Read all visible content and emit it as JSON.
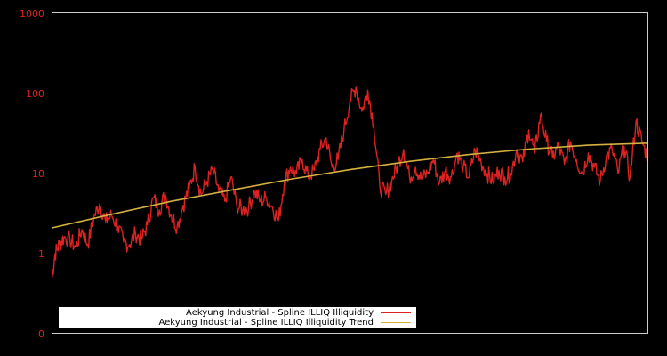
{
  "chart_data": {
    "type": "line",
    "title": "",
    "xlabel": "",
    "ylabel": "",
    "yscale": "log",
    "ylim": [
      0.1,
      1000
    ],
    "yticks": [
      {
        "label": "1000",
        "value": 1000
      },
      {
        "label": "100",
        "value": 100
      },
      {
        "label": "10",
        "value": 10
      },
      {
        "label": "1",
        "value": 1
      },
      {
        "label": "0",
        "value": 0.1
      }
    ],
    "xticks": [],
    "grid": false,
    "legend_position": "lower-left",
    "series": [
      {
        "name": "Aekyung Industrial - Spline ILLIQ Illiquidity",
        "color": "#dd2222",
        "x_frac": [
          0.0,
          0.005,
          0.012,
          0.02,
          0.03,
          0.04,
          0.05,
          0.06,
          0.07,
          0.08,
          0.09,
          0.1,
          0.11,
          0.12,
          0.13,
          0.14,
          0.15,
          0.16,
          0.17,
          0.18,
          0.19,
          0.2,
          0.21,
          0.22,
          0.23,
          0.24,
          0.25,
          0.26,
          0.27,
          0.28,
          0.29,
          0.3,
          0.31,
          0.32,
          0.33,
          0.34,
          0.35,
          0.36,
          0.37,
          0.38,
          0.39,
          0.4,
          0.41,
          0.42,
          0.43,
          0.44,
          0.45,
          0.46,
          0.47,
          0.48,
          0.49,
          0.5,
          0.51,
          0.52,
          0.53,
          0.54,
          0.55,
          0.56,
          0.57,
          0.58,
          0.59,
          0.6,
          0.61,
          0.62,
          0.63,
          0.64,
          0.65,
          0.66,
          0.67,
          0.68,
          0.69,
          0.7,
          0.71,
          0.72,
          0.73,
          0.74,
          0.75,
          0.76,
          0.77,
          0.78,
          0.79,
          0.8,
          0.81,
          0.82,
          0.83,
          0.84,
          0.85,
          0.86,
          0.87,
          0.88,
          0.89,
          0.9,
          0.91,
          0.92,
          0.93,
          0.94,
          0.95,
          0.96,
          0.97,
          0.98,
          0.99,
          1.0
        ],
        "values": [
          0.5,
          1.0,
          1.3,
          1.6,
          1.5,
          1.2,
          2.0,
          1.3,
          2.8,
          4.2,
          2.5,
          3.0,
          2.2,
          1.4,
          1.3,
          1.8,
          1.5,
          2.3,
          5.0,
          3.5,
          5.5,
          3.0,
          2.2,
          4.0,
          6.5,
          12.0,
          5.5,
          8.0,
          11.0,
          6.0,
          4.5,
          9.0,
          4.0,
          3.5,
          3.8,
          6.0,
          4.5,
          5.0,
          3.8,
          2.6,
          8.0,
          12.0,
          10.0,
          15.0,
          9.0,
          11.0,
          20.0,
          28.0,
          12.0,
          15.0,
          35.0,
          80.0,
          120.0,
          60.0,
          110.0,
          40.0,
          7.0,
          5.5,
          8.0,
          13.0,
          20.0,
          9.0,
          12.0,
          8.5,
          10.0,
          15.0,
          7.5,
          11.0,
          9.0,
          18.0,
          12.0,
          9.0,
          20.0,
          14.0,
          10.0,
          8.0,
          11.0,
          9.0,
          10.0,
          20.0,
          14.0,
          35.0,
          18.0,
          55.0,
          25.0,
          16.0,
          22.0,
          13.0,
          25.0,
          15.0,
          10.0,
          18.0,
          12.0,
          8.0,
          16.0,
          20.0,
          10.0,
          22.0,
          9.0,
          45.0,
          25.0,
          16.0
        ]
      },
      {
        "name": "Aekyung Industrial - Spline ILLIQ Illiquidity Trend",
        "color": "#d4b040",
        "x_frac": [
          0.0,
          0.1,
          0.2,
          0.3,
          0.4,
          0.5,
          0.6,
          0.7,
          0.8,
          0.9,
          1.0
        ],
        "values": [
          2.1,
          3.1,
          4.5,
          6.2,
          8.5,
          11.2,
          14.2,
          17.3,
          20.2,
          22.6,
          24.0
        ]
      }
    ]
  },
  "legend": {
    "items": [
      {
        "label": "Aekyung Industrial - Spline ILLIQ Illiquidity",
        "color": "#dd2222"
      },
      {
        "label": "Aekyung Industrial - Spline ILLIQ Illiquidity Trend",
        "color": "#d4b040"
      }
    ]
  },
  "style": {
    "background": "#000000",
    "frame_color": "#cccccc",
    "tick_label_color": "#dd2222"
  }
}
